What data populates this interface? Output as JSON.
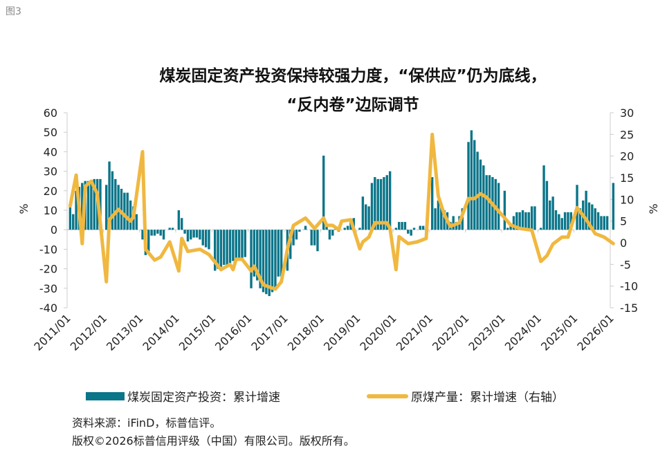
{
  "figure_label": "图3",
  "chart_data": {
    "type": "bar+line",
    "title_lines": [
      "煤炭固定资产投资保持较强力度，“保供应”仍为底线，",
      "“反内卷”边际调节"
    ],
    "ylabel_left": "%",
    "ylabel_right": "%",
    "ylim_left": [
      -40,
      60
    ],
    "ylim_right": [
      -15,
      30
    ],
    "yticks_left": [
      60,
      50,
      40,
      30,
      20,
      10,
      0,
      -10,
      -20,
      -30,
      -40
    ],
    "yticks_right": [
      30,
      25,
      20,
      15,
      10,
      5,
      0,
      -5,
      -10,
      -15
    ],
    "xticks": [
      "2011/01",
      "2012/01",
      "2013/01",
      "2014/01",
      "2015/01",
      "2016/01",
      "2017/01",
      "2018/01",
      "2019/01",
      "2020/01",
      "2021/01",
      "2022/01",
      "2023/01",
      "2024/01",
      "2025/01",
      "2026/01"
    ],
    "grid": false,
    "legend_position": "bottom",
    "colors": {
      "bars": "#0b7589",
      "line": "#f0b840"
    },
    "bar_series": {
      "name": "煤炭固定资产投资：累计增速",
      "axis": "left",
      "by_year_feb_to_dec": [
        {
          "year": 2011,
          "values": [
            13,
            8,
            20,
            22,
            24,
            25,
            25,
            25,
            26,
            26,
            26
          ]
        },
        {
          "year": 2012,
          "values": [
            23,
            35,
            30,
            26,
            23,
            21,
            19,
            19,
            15,
            12,
            8
          ]
        },
        {
          "year": 2013,
          "values": [
            -5,
            -13,
            -11,
            -3,
            -3,
            -2,
            -3,
            -5,
            0,
            1,
            1
          ]
        },
        {
          "year": 2014,
          "values": [
            10,
            6,
            -2,
            -6,
            -5,
            -4,
            -4,
            -5,
            -8,
            -9,
            -10
          ]
        },
        {
          "year": 2015,
          "values": [
            -21,
            -20,
            -19,
            -18,
            -18,
            -17,
            -16,
            -16,
            -15,
            -15,
            -14
          ]
        },
        {
          "year": 2016,
          "values": [
            -30,
            -24,
            -26,
            -30,
            -32,
            -33,
            -34,
            -32,
            -30,
            -24,
            -24
          ]
        },
        {
          "year": 2017,
          "values": [
            -21,
            -15,
            -8,
            -5,
            -1,
            0,
            2,
            0,
            -8,
            -8,
            -11
          ]
        },
        {
          "year": 2018,
          "values": [
            38,
            2,
            -5,
            -3,
            1,
            -1,
            0,
            1,
            2,
            4,
            6
          ]
        },
        {
          "year": 2019,
          "values": [
            1,
            17,
            13,
            12,
            24,
            27,
            26,
            26,
            27,
            28,
            30
          ]
        },
        {
          "year": 2020,
          "values": [
            1,
            4,
            4,
            4,
            -2,
            -3,
            1,
            0,
            2,
            2,
            1
          ]
        },
        {
          "year": 2021,
          "values": [
            27,
            11,
            15,
            12,
            10,
            9,
            4,
            7,
            4,
            7,
            11
          ]
        },
        {
          "year": 2022,
          "values": [
            45,
            51,
            46,
            40,
            36,
            33,
            28,
            28,
            27,
            26,
            24
          ]
        },
        {
          "year": 2023,
          "values": [
            20,
            1,
            3,
            7,
            9,
            9,
            10,
            9,
            9,
            12,
            12
          ]
        },
        {
          "year": 2024,
          "values": [
            1,
            33,
            25,
            15,
            17,
            10,
            8,
            6,
            9,
            9,
            9
          ]
        },
        {
          "year": 2025,
          "values": [
            23,
            11,
            15,
            20,
            14,
            13,
            11,
            9,
            7,
            7,
            7
          ]
        },
        {
          "year": 2026,
          "values": [
            24
          ]
        }
      ]
    },
    "line_series": {
      "name": "原煤产量：累计增速（右轴）",
      "axis": "right",
      "points": [
        [
          "2011-02",
          8.5
        ],
        [
          "2011-04",
          15.6
        ],
        [
          "2011-06",
          -0.2
        ],
        [
          "2011-07",
          13
        ],
        [
          "2011-09",
          14.2
        ],
        [
          "2011-11",
          11.3
        ],
        [
          "2012-02",
          -9
        ],
        [
          "2012-03",
          5.3
        ],
        [
          "2012-06",
          7.7
        ],
        [
          "2012-10",
          5
        ],
        [
          "2012-11",
          6
        ],
        [
          "2013-02",
          21
        ],
        [
          "2013-03",
          -1.5
        ],
        [
          "2013-06",
          -4
        ],
        [
          "2013-08",
          -3.3
        ],
        [
          "2013-11",
          0.2
        ],
        [
          "2014-02",
          -6.5
        ],
        [
          "2014-03",
          1
        ],
        [
          "2014-05",
          -2
        ],
        [
          "2014-09",
          -1.5
        ],
        [
          "2014-12",
          -2.7
        ],
        [
          "2015-04",
          -6.2
        ],
        [
          "2015-07",
          -5
        ],
        [
          "2015-08",
          -6.2
        ],
        [
          "2015-09",
          -3.8
        ],
        [
          "2015-11",
          -3.8
        ],
        [
          "2016-02",
          -6.5
        ],
        [
          "2016-03",
          -5.4
        ],
        [
          "2016-06",
          -9.7
        ],
        [
          "2016-10",
          -10.7
        ],
        [
          "2016-12",
          -9
        ],
        [
          "2017-02",
          -1.5
        ],
        [
          "2017-04",
          4
        ],
        [
          "2017-08",
          5.7
        ],
        [
          "2017-11",
          3.3
        ],
        [
          "2018-02",
          5.7
        ],
        [
          "2018-03",
          4
        ],
        [
          "2018-05",
          4
        ],
        [
          "2018-07",
          3
        ],
        [
          "2018-08",
          5
        ],
        [
          "2018-11",
          5.3
        ],
        [
          "2019-02",
          -1.4
        ],
        [
          "2019-03",
          0.2
        ],
        [
          "2019-05",
          1.3
        ],
        [
          "2019-07",
          4.6
        ],
        [
          "2019-11",
          4.6
        ],
        [
          "2019-12",
          3.3
        ],
        [
          "2020-02",
          -6.2
        ],
        [
          "2020-03",
          1.4
        ],
        [
          "2020-06",
          -0.2
        ],
        [
          "2020-09",
          0.2
        ],
        [
          "2020-12",
          1
        ],
        [
          "2021-02",
          25
        ],
        [
          "2021-04",
          10.8
        ],
        [
          "2021-06",
          6.5
        ],
        [
          "2021-08",
          3.8
        ],
        [
          "2021-11",
          4.6
        ],
        [
          "2022-02",
          10.2
        ],
        [
          "2022-04",
          10.2
        ],
        [
          "2022-06",
          11.3
        ],
        [
          "2022-08",
          10.5
        ],
        [
          "2022-11",
          8.1
        ],
        [
          "2023-02",
          5.7
        ],
        [
          "2023-04",
          4.1
        ],
        [
          "2023-07",
          3.3
        ],
        [
          "2023-11",
          2.9
        ],
        [
          "2024-02",
          -4.3
        ],
        [
          "2024-04",
          -3
        ],
        [
          "2024-06",
          -0.3
        ],
        [
          "2024-09",
          1.3
        ],
        [
          "2024-11",
          1.3
        ],
        [
          "2025-02",
          8.1
        ],
        [
          "2025-05",
          5.4
        ],
        [
          "2025-08",
          2.1
        ],
        [
          "2025-11",
          1.3
        ],
        [
          "2026-02",
          -0.2
        ]
      ]
    }
  },
  "notes": {
    "source": "资料来源：iFinD，标普信评。",
    "copyright": "版权©2026标普信用评级（中国）有限公司。版权所有。"
  }
}
